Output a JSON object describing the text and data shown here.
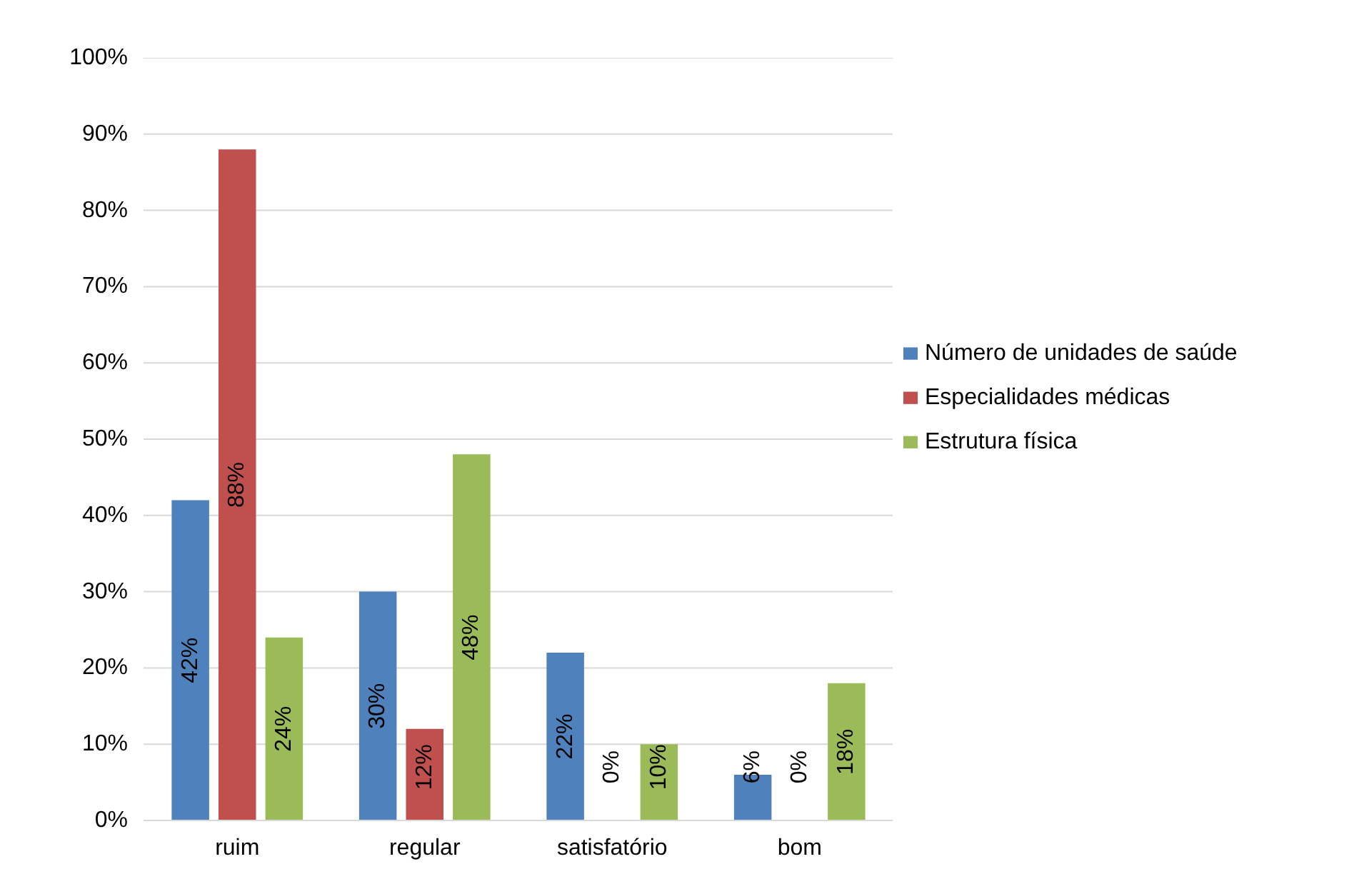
{
  "chart_data": {
    "type": "bar",
    "categories": [
      "ruim",
      "regular",
      "satisfatório",
      "bom"
    ],
    "series": [
      {
        "name": "Número de unidades de saúde",
        "color": "#4f81bd",
        "values": [
          42,
          30,
          22,
          6
        ],
        "value_labels": [
          "42%",
          "30%",
          "22%",
          "6%"
        ]
      },
      {
        "name": "Especialidades médicas",
        "color": "#c0504d",
        "values": [
          88,
          12,
          0,
          0
        ],
        "value_labels": [
          "88%",
          "12%",
          "0%",
          "0%"
        ]
      },
      {
        "name": "Estrutura física",
        "color": "#9bbb59",
        "values": [
          24,
          48,
          10,
          18
        ],
        "value_labels": [
          "24%",
          "48%",
          "10%",
          "18%"
        ]
      }
    ],
    "ylim": [
      0,
      100
    ],
    "yticks": [
      {
        "value": 0,
        "label": "0%"
      },
      {
        "value": 10,
        "label": "10%"
      },
      {
        "value": 20,
        "label": "20%"
      },
      {
        "value": 30,
        "label": "30%"
      },
      {
        "value": 40,
        "label": "40%"
      },
      {
        "value": 50,
        "label": "50%"
      },
      {
        "value": 60,
        "label": "60%"
      },
      {
        "value": 70,
        "label": "70%"
      },
      {
        "value": 80,
        "label": "80%"
      },
      {
        "value": 90,
        "label": "90%"
      },
      {
        "value": 100,
        "label": "100%"
      }
    ],
    "grid": "y",
    "legend": "right"
  }
}
